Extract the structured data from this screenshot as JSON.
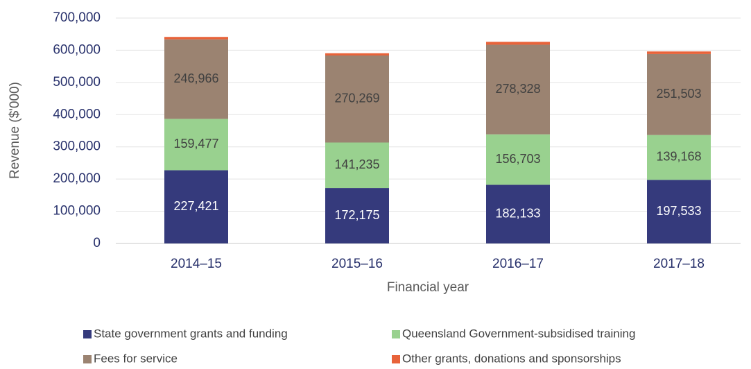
{
  "chart_data": {
    "type": "stacked_bar",
    "x_label": "Financial year",
    "y_label": "Revenue ($'000)",
    "categories": [
      "2014–15",
      "2015–16",
      "2016–17",
      "2017–18"
    ],
    "series": [
      {
        "name": "State government grants and funding",
        "color": "#353a7c",
        "label_color": "#ffffff",
        "values": [
          227421,
          172175,
          182133,
          197533
        ],
        "value_labels": [
          "227,421",
          "172,175",
          "182,133",
          "197,533"
        ]
      },
      {
        "name": "Queensland Government-subsidised training",
        "color": "#99d18f",
        "label_color": "#404040",
        "values": [
          159477,
          141235,
          156703,
          139168
        ],
        "value_labels": [
          "159,477",
          "141,235",
          "156,703",
          "139,168"
        ]
      },
      {
        "name": "Fees for service",
        "color": "#9b8371",
        "label_color": "#404040",
        "values": [
          246966,
          270269,
          278328,
          251503
        ],
        "value_labels": [
          "246,966",
          "270,269",
          "278,328",
          "251,503"
        ]
      },
      {
        "name": "Other grants, donations and sponsorships",
        "color": "#e8633a",
        "values": [
          7500,
          7000,
          9000,
          8000
        ]
      }
    ],
    "ylim": [
      0,
      700000
    ],
    "yticks": [
      0,
      {
        "value": 100000,
        "label": "100,000"
      },
      {
        "value": 200000,
        "label": "200,000"
      },
      {
        "value": 300000,
        "label": "300,000"
      },
      {
        "value": 400000,
        "label": "400,000"
      },
      {
        "value": 500000,
        "label": "500,000"
      },
      {
        "value": 600000,
        "label": "600,000"
      },
      {
        "value": 700000,
        "label": "700,000"
      }
    ],
    "grid": true
  }
}
